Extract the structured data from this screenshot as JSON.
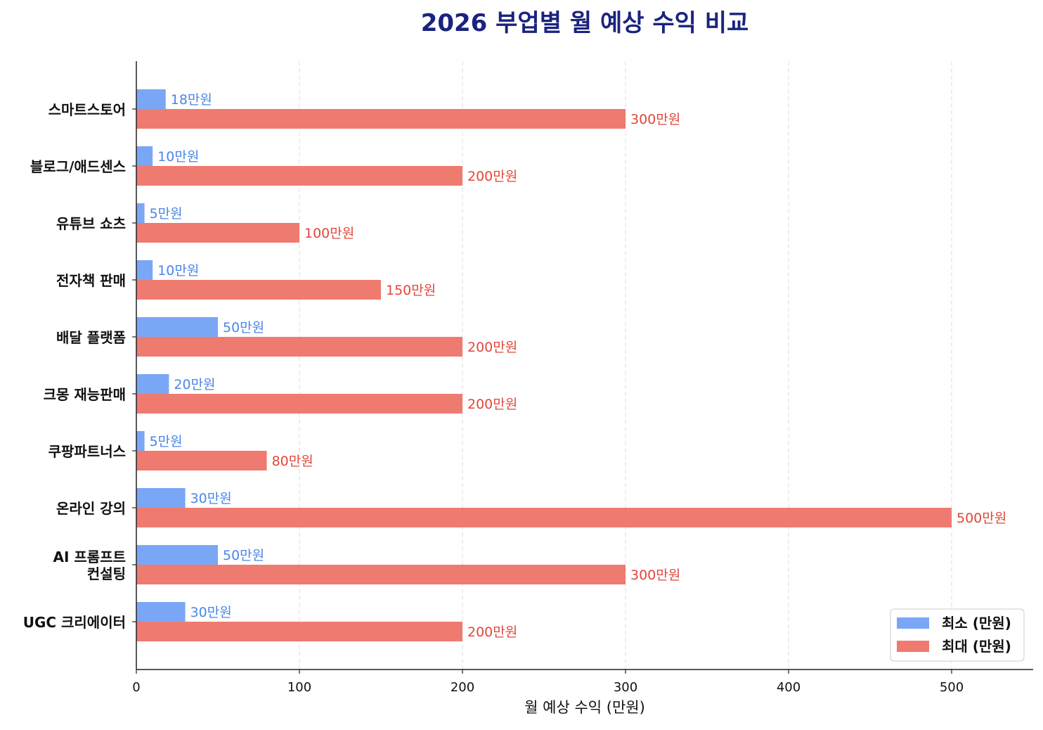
{
  "chart_data": {
    "type": "bar",
    "orientation": "horizontal",
    "title": "2026 부업별 월 예상 수익 비교",
    "xlabel": "월 예상 수익 (만원)",
    "ylabel": "",
    "xlim": [
      0,
      550
    ],
    "xticks": [
      0,
      100,
      200,
      300,
      400,
      500
    ],
    "grid": "x-dashed",
    "legend_position": "lower-right",
    "categories": [
      "스마트스토어",
      "블로그/애드센스",
      "유튜브 쇼츠",
      "전자책 판매",
      "배달 플랫폼",
      "크몽 재능판매",
      "쿠팡파트너스",
      "온라인 강의",
      "AI 프롬프트\n컨설팅",
      "UGC 크리에이터"
    ],
    "series": [
      {
        "name": "최소 (만원)",
        "color": "#7aa7f5",
        "label_color": "#4a86e8",
        "values": [
          18,
          10,
          5,
          10,
          50,
          20,
          5,
          30,
          50,
          30
        ]
      },
      {
        "name": "최대 (만원)",
        "color": "#ef7b70",
        "label_color": "#e2463a",
        "values": [
          300,
          200,
          100,
          150,
          200,
          200,
          80,
          500,
          300,
          200
        ]
      }
    ],
    "label_suffix": "만원",
    "title_color": "#1a237e"
  }
}
